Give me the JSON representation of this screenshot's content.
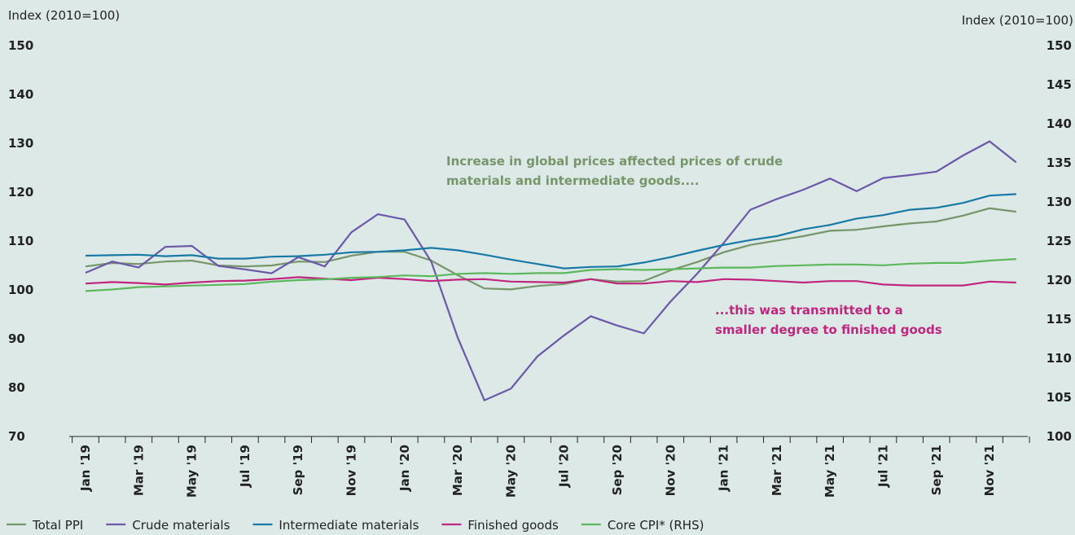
{
  "chart_data": {
    "type": "line",
    "y_label": "Index (2010=100)",
    "y2_label": "Index (2010=100)",
    "categories": [
      "Jan '19",
      null,
      "Mar '19",
      null,
      "May '19",
      null,
      "Jul '19",
      null,
      "Sep '19",
      null,
      "Nov '19",
      null,
      "Jan '20",
      null,
      "Mar '20",
      null,
      "May '20",
      null,
      "Jul '20",
      null,
      "Sep '20",
      null,
      "Nov '20",
      null,
      "Jan '21",
      null,
      "Mar '21",
      null,
      "May '21",
      null,
      "Jul '21",
      null,
      "Sep '21",
      null,
      "Nov '21",
      null
    ],
    "ylim": [
      70,
      150
    ],
    "yticks": [
      70,
      80,
      90,
      100,
      110,
      120,
      130,
      140,
      150
    ],
    "y2lim": [
      100,
      150
    ],
    "y2ticks": [
      100,
      105,
      110,
      115,
      120,
      125,
      130,
      135,
      140,
      145,
      150
    ],
    "series": [
      {
        "name": "Total PPI",
        "color": "#76966a",
        "values": [
          104.8,
          105.5,
          105.3,
          105.8,
          106,
          105,
          104.8,
          105,
          105.8,
          105.7,
          107,
          107.8,
          107.8,
          106,
          103,
          100.3,
          100.1,
          100.8,
          101.2,
          102.2,
          101.7,
          101.8,
          104,
          105.7,
          107.7,
          109.2,
          110.1,
          111,
          112.1,
          112.3,
          113,
          113.6,
          114,
          115.2,
          116.7,
          116
        ]
      },
      {
        "name": "Crude materials",
        "color": "#6b58a8",
        "values": [
          103.5,
          105.8,
          104.6,
          108.8,
          109,
          104.9,
          104.2,
          103.4,
          106.7,
          104.8,
          111.8,
          115.5,
          114.4,
          105.8,
          90.2,
          77.4,
          79.8,
          86.4,
          90.7,
          94.6,
          92.7,
          91.1,
          97.6,
          103.3,
          109.6,
          116.4,
          118.6,
          120.5,
          122.8,
          120.2,
          122.9,
          123.5,
          124.2,
          127.5,
          130.4,
          126.1
        ]
      },
      {
        "name": "Intermediate materials",
        "color": "#1878a6",
        "values": [
          107,
          107.1,
          107.2,
          106.9,
          107.1,
          106.4,
          106.4,
          106.8,
          106.9,
          107.2,
          107.7,
          107.8,
          108.1,
          108.6,
          108.1,
          107.2,
          106.2,
          105.3,
          104.4,
          104.7,
          104.8,
          105.6,
          106.7,
          108,
          109.2,
          110.2,
          111,
          112.4,
          113.3,
          114.6,
          115.3,
          116.4,
          116.8,
          117.8,
          119.3,
          119.6
        ]
      },
      {
        "name": "Finished goods",
        "color": "#c0267e",
        "values": [
          101.3,
          101.6,
          101.4,
          101.1,
          101.5,
          101.8,
          101.9,
          102.2,
          102.6,
          102.3,
          102,
          102.5,
          102.2,
          101.8,
          102.1,
          102.2,
          101.7,
          101.6,
          101.5,
          102.2,
          101.3,
          101.3,
          101.8,
          101.6,
          102.2,
          102.1,
          101.8,
          101.5,
          101.8,
          101.8,
          101.1,
          100.9,
          100.9,
          100.9,
          101.7,
          101.5
        ]
      },
      {
        "name": "Core CPI* (RHS)",
        "color": "#5cb85c",
        "axis": "y2",
        "values": [
          118.6,
          118.8,
          119.1,
          119.2,
          119.3,
          119.4,
          119.5,
          119.8,
          120,
          120.1,
          120.3,
          120.4,
          120.6,
          120.5,
          120.8,
          120.9,
          120.8,
          120.9,
          120.9,
          121.3,
          121.4,
          121.3,
          121.4,
          121.5,
          121.6,
          121.6,
          121.8,
          121.9,
          122,
          122,
          121.9,
          122.1,
          122.2,
          122.2,
          122.5,
          122.7
        ]
      }
    ],
    "annotations": [
      {
        "text": "Increase in global prices affected prices of crude",
        "color": "#76966a"
      },
      {
        "text": "materials and intermediate goods....",
        "color": "#76966a"
      },
      {
        "text": "...this was transmitted to a",
        "color": "#c0267e"
      },
      {
        "text": "smaller degree to finished goods",
        "color": "#c0267e"
      }
    ]
  }
}
